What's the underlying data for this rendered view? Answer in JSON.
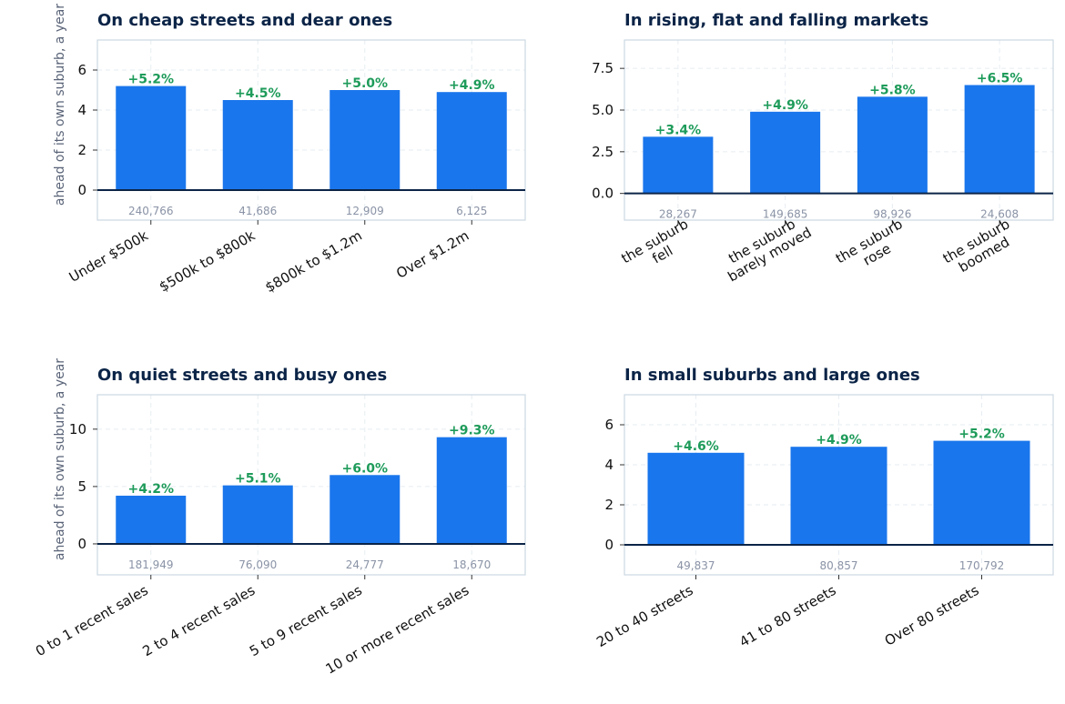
{
  "colors": {
    "bar": "#1a76ec",
    "positive_label": "#1e9b5a",
    "count_label": "#8a93a6",
    "zero_line": "#0b2447",
    "frame": "#ccd8e2",
    "grid": "#e6edf2",
    "title": "#0b2447"
  },
  "chart_data": [
    {
      "type": "bar",
      "title": "On cheap streets and dear ones",
      "ylabel": "ahead of its own suburb, a year",
      "categories": [
        [
          "Under $500k"
        ],
        [
          "$500k to $800k"
        ],
        [
          "$800k to $1.2m"
        ],
        [
          "Over $1.2m"
        ]
      ],
      "values": [
        5.2,
        4.5,
        5.0,
        4.9
      ],
      "value_labels": [
        "+5.2%",
        "+4.5%",
        "+5.0%",
        "+4.9%"
      ],
      "counts": [
        "240,766",
        "41,686",
        "12,909",
        "6,125"
      ],
      "ylim": [
        -1.5,
        7.5
      ],
      "yticks": [
        0,
        2,
        4,
        6
      ],
      "ytick_labels": [
        "0",
        "2",
        "4",
        "6"
      ],
      "grid": true
    },
    {
      "type": "bar",
      "title": "In rising, flat and falling markets",
      "ylabel": "",
      "categories": [
        [
          "the suburb",
          "fell"
        ],
        [
          "the suburb",
          "barely moved"
        ],
        [
          "the suburb",
          "rose"
        ],
        [
          "the suburb",
          "boomed"
        ]
      ],
      "values": [
        3.4,
        4.9,
        5.8,
        6.5
      ],
      "value_labels": [
        "+3.4%",
        "+4.9%",
        "+5.8%",
        "+6.5%"
      ],
      "counts": [
        "28,267",
        "149,685",
        "98,926",
        "24,608"
      ],
      "ylim": [
        -1.6,
        9.2
      ],
      "yticks": [
        0,
        2.5,
        5,
        7.5
      ],
      "ytick_labels": [
        "0.0",
        "2.5",
        "5.0",
        "7.5"
      ],
      "grid": true
    },
    {
      "type": "bar",
      "title": "On quiet streets and busy ones",
      "ylabel": "ahead of its own suburb, a year",
      "categories": [
        [
          "0 to 1 recent sales"
        ],
        [
          "2 to 4 recent sales"
        ],
        [
          "5 to 9 recent sales"
        ],
        [
          "10 or more recent sales"
        ]
      ],
      "values": [
        4.2,
        5.1,
        6.0,
        9.3
      ],
      "value_labels": [
        "+4.2%",
        "+5.1%",
        "+6.0%",
        "+9.3%"
      ],
      "counts": [
        "181,949",
        "76,090",
        "24,777",
        "18,670"
      ],
      "ylim": [
        -2.7,
        13.0
      ],
      "yticks": [
        0,
        5,
        10
      ],
      "ytick_labels": [
        "0",
        "5",
        "10"
      ],
      "grid": true
    },
    {
      "type": "bar",
      "title": "In small suburbs and large ones",
      "ylabel": "",
      "categories": [
        [
          "20 to 40 streets"
        ],
        [
          "41 to 80 streets"
        ],
        [
          "Over 80 streets"
        ]
      ],
      "values": [
        4.6,
        4.9,
        5.2
      ],
      "value_labels": [
        "+4.6%",
        "+4.9%",
        "+5.2%"
      ],
      "counts": [
        "49,837",
        "80,857",
        "170,792"
      ],
      "ylim": [
        -1.5,
        7.5
      ],
      "yticks": [
        0,
        2,
        4,
        6
      ],
      "ytick_labels": [
        "0",
        "2",
        "4",
        "6"
      ],
      "grid": true
    }
  ]
}
